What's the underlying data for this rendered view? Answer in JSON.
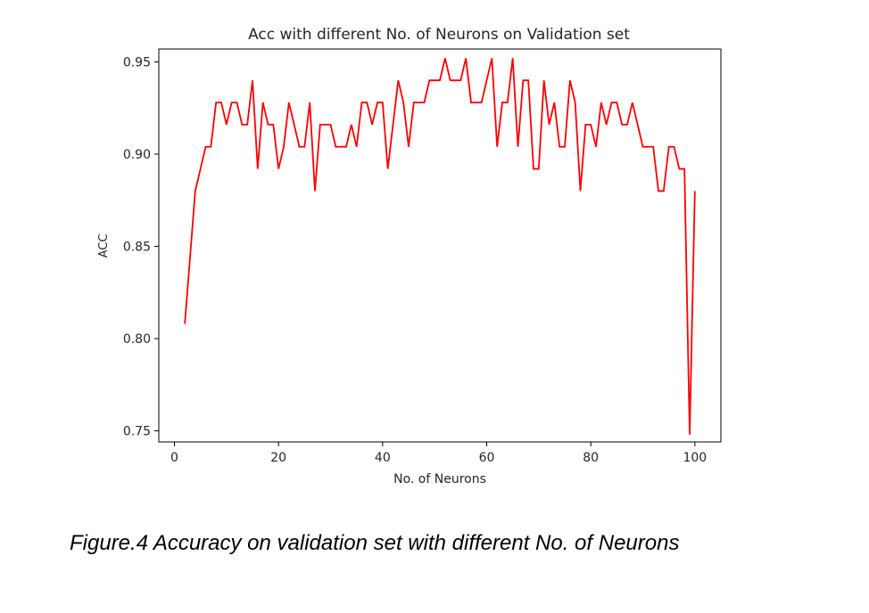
{
  "caption": "Figure.4 Accuracy on validation set with different No. of Neurons",
  "chart_data": {
    "type": "line",
    "title": "Acc with different No. of Neurons on Validation set",
    "xlabel": "No. of Neurons",
    "ylabel": "ACC",
    "xlim": [
      -3,
      105
    ],
    "ylim": [
      0.744,
      0.957
    ],
    "xticks": [
      0,
      20,
      40,
      60,
      80,
      100
    ],
    "xtick_labels": [
      "0",
      "20",
      "40",
      "60",
      "80",
      "100"
    ],
    "yticks": [
      0.75,
      0.8,
      0.85,
      0.9,
      0.95
    ],
    "ytick_labels": [
      "0.75",
      "0.80",
      "0.85",
      "0.90",
      "0.95"
    ],
    "grid": false,
    "color": "#ff0000",
    "series": [
      {
        "x": [
          2,
          3,
          4,
          5,
          6,
          7,
          8,
          9,
          10,
          11,
          12,
          13,
          14,
          15,
          16,
          17,
          18,
          19,
          20,
          21,
          22,
          23,
          24,
          25,
          26,
          27,
          28,
          29,
          30,
          31,
          32,
          33,
          34,
          35,
          36,
          37,
          38,
          39,
          40,
          41,
          42,
          43,
          44,
          45,
          46,
          47,
          48,
          49,
          50,
          51,
          52,
          53,
          54,
          55,
          56,
          57,
          58,
          59,
          60,
          61,
          62,
          63,
          64,
          65,
          66,
          67,
          68,
          69,
          70,
          71,
          72,
          73,
          74,
          75,
          76,
          77,
          78,
          79,
          80,
          81,
          82,
          83,
          84,
          85,
          86,
          87,
          88,
          89,
          90,
          91,
          92,
          93,
          94,
          95,
          96,
          97,
          98,
          99,
          100
        ],
        "y": [
          0.808,
          0.844,
          0.88,
          0.892,
          0.904,
          0.904,
          0.928,
          0.928,
          0.916,
          0.928,
          0.928,
          0.916,
          0.916,
          0.94,
          0.892,
          0.928,
          0.916,
          0.916,
          0.892,
          0.904,
          0.928,
          0.916,
          0.904,
          0.904,
          0.928,
          0.88,
          0.916,
          0.916,
          0.916,
          0.904,
          0.904,
          0.904,
          0.916,
          0.904,
          0.928,
          0.928,
          0.916,
          0.928,
          0.928,
          0.892,
          0.916,
          0.94,
          0.928,
          0.904,
          0.928,
          0.928,
          0.928,
          0.94,
          0.94,
          0.94,
          0.952,
          0.94,
          0.94,
          0.94,
          0.952,
          0.928,
          0.928,
          0.928,
          0.94,
          0.952,
          0.904,
          0.928,
          0.928,
          0.952,
          0.904,
          0.94,
          0.94,
          0.892,
          0.892,
          0.94,
          0.916,
          0.928,
          0.904,
          0.904,
          0.94,
          0.928,
          0.88,
          0.916,
          0.916,
          0.904,
          0.928,
          0.916,
          0.928,
          0.928,
          0.916,
          0.916,
          0.928,
          0.916,
          0.904,
          0.904,
          0.904,
          0.88,
          0.88,
          0.904,
          0.904,
          0.892,
          0.892,
          0.748,
          0.88
        ]
      }
    ]
  }
}
